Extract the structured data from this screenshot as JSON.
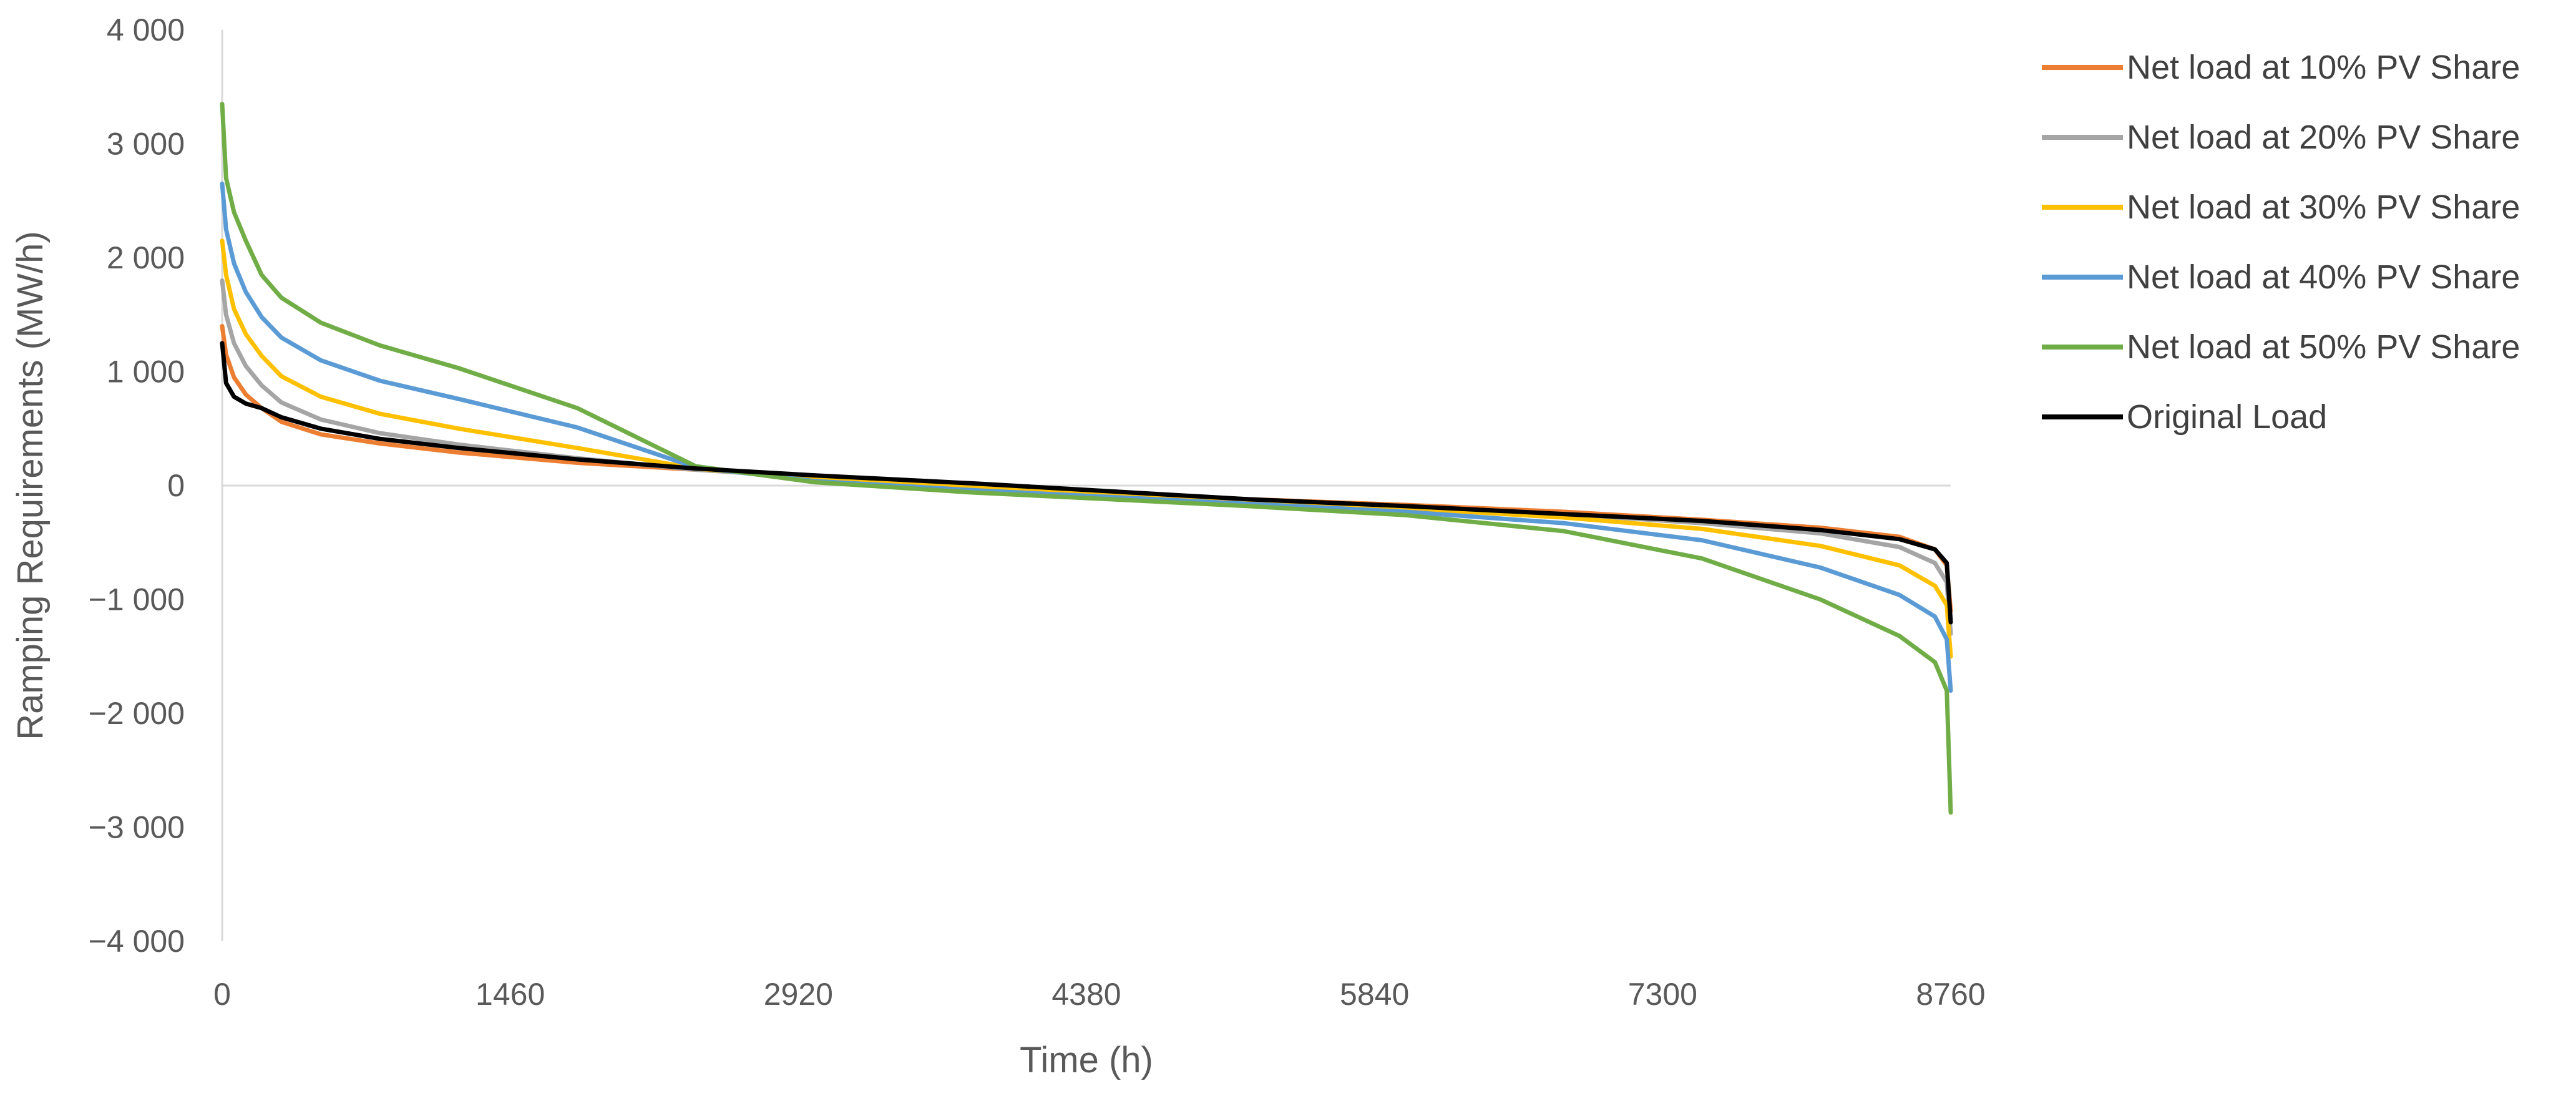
{
  "chart_data": {
    "type": "line",
    "title": "",
    "xlabel": "Time (h)",
    "ylabel": "Ramping Requirements (MW/h)",
    "xlim": [
      0,
      8760
    ],
    "ylim": [
      -4000,
      4000
    ],
    "x_ticks": [
      0,
      1460,
      2920,
      4380,
      5840,
      7300,
      8760
    ],
    "x_tick_labels": [
      "0",
      "1460",
      "2920",
      "4380",
      "5840",
      "7300",
      "8760"
    ],
    "y_ticks": [
      4000,
      3000,
      2000,
      1000,
      0,
      -1000,
      -2000,
      -3000,
      -4000
    ],
    "y_tick_labels": [
      "4 000",
      "3 000",
      "2 000",
      "1 000",
      "0",
      "−1 000",
      "−2 000",
      "−3 000",
      "−4 000"
    ],
    "grid": false,
    "legend_position": "right",
    "series": [
      {
        "name": "Net load at 10% PV Share",
        "color": "#ED7D31",
        "x": [
          0,
          20,
          60,
          120,
          200,
          300,
          500,
          800,
          1200,
          1800,
          2400,
          3000,
          3800,
          4500,
          5200,
          6000,
          6800,
          7500,
          8100,
          8500,
          8680,
          8740,
          8760
        ],
        "y": [
          1400,
          1150,
          950,
          800,
          680,
          560,
          450,
          370,
          290,
          200,
          140,
          80,
          0,
          -60,
          -120,
          -170,
          -230,
          -300,
          -370,
          -450,
          -560,
          -700,
          -1100
        ]
      },
      {
        "name": "Net load at 20% PV Share",
        "color": "#A5A5A5",
        "x": [
          0,
          20,
          60,
          120,
          200,
          300,
          500,
          800,
          1200,
          1800,
          2400,
          3000,
          3800,
          4500,
          5200,
          6000,
          6800,
          7500,
          8100,
          8500,
          8680,
          8740,
          8760
        ],
        "y": [
          1800,
          1500,
          1250,
          1050,
          880,
          730,
          580,
          460,
          360,
          240,
          140,
          70,
          -10,
          -70,
          -130,
          -190,
          -250,
          -330,
          -420,
          -540,
          -680,
          -850,
          -1300
        ]
      },
      {
        "name": "Net load at 30% PV Share",
        "color": "#FFC000",
        "x": [
          0,
          20,
          60,
          120,
          200,
          300,
          500,
          800,
          1200,
          1800,
          2400,
          3000,
          3800,
          4500,
          5200,
          6000,
          6800,
          7500,
          8100,
          8500,
          8680,
          8740,
          8760
        ],
        "y": [
          2150,
          1850,
          1550,
          1330,
          1140,
          960,
          780,
          630,
          500,
          330,
          150,
          60,
          -20,
          -80,
          -140,
          -200,
          -280,
          -380,
          -530,
          -700,
          -880,
          -1050,
          -1500
        ]
      },
      {
        "name": "Net load at 40% PV Share",
        "color": "#5B9BD5",
        "x": [
          0,
          20,
          60,
          120,
          200,
          300,
          500,
          800,
          1200,
          1800,
          2400,
          3000,
          3800,
          4500,
          5200,
          6000,
          6800,
          7500,
          8100,
          8500,
          8680,
          8740,
          8760
        ],
        "y": [
          2650,
          2250,
          1950,
          1700,
          1480,
          1300,
          1100,
          920,
          760,
          510,
          160,
          40,
          -40,
          -100,
          -160,
          -230,
          -330,
          -480,
          -720,
          -960,
          -1150,
          -1350,
          -1800
        ]
      },
      {
        "name": "Net load at 50% PV Share",
        "color": "#70AD47",
        "x": [
          0,
          20,
          60,
          120,
          200,
          300,
          500,
          800,
          1200,
          1800,
          2400,
          3000,
          3800,
          4500,
          5200,
          6000,
          6800,
          7500,
          8100,
          8500,
          8680,
          8740,
          8760
        ],
        "y": [
          3350,
          2700,
          2400,
          2150,
          1850,
          1650,
          1430,
          1230,
          1030,
          680,
          170,
          30,
          -60,
          -120,
          -180,
          -260,
          -400,
          -640,
          -1000,
          -1320,
          -1550,
          -1800,
          -2870
        ]
      },
      {
        "name": "Original Load",
        "color": "#000000",
        "x": [
          0,
          20,
          60,
          120,
          200,
          300,
          500,
          800,
          1200,
          1800,
          2400,
          3000,
          3800,
          4500,
          5200,
          6000,
          6800,
          7500,
          8100,
          8500,
          8680,
          8740,
          8760
        ],
        "y": [
          1250,
          900,
          780,
          720,
          680,
          600,
          500,
          410,
          330,
          230,
          150,
          90,
          20,
          -50,
          -120,
          -180,
          -250,
          -310,
          -390,
          -470,
          -560,
          -680,
          -1200
        ]
      }
    ]
  }
}
